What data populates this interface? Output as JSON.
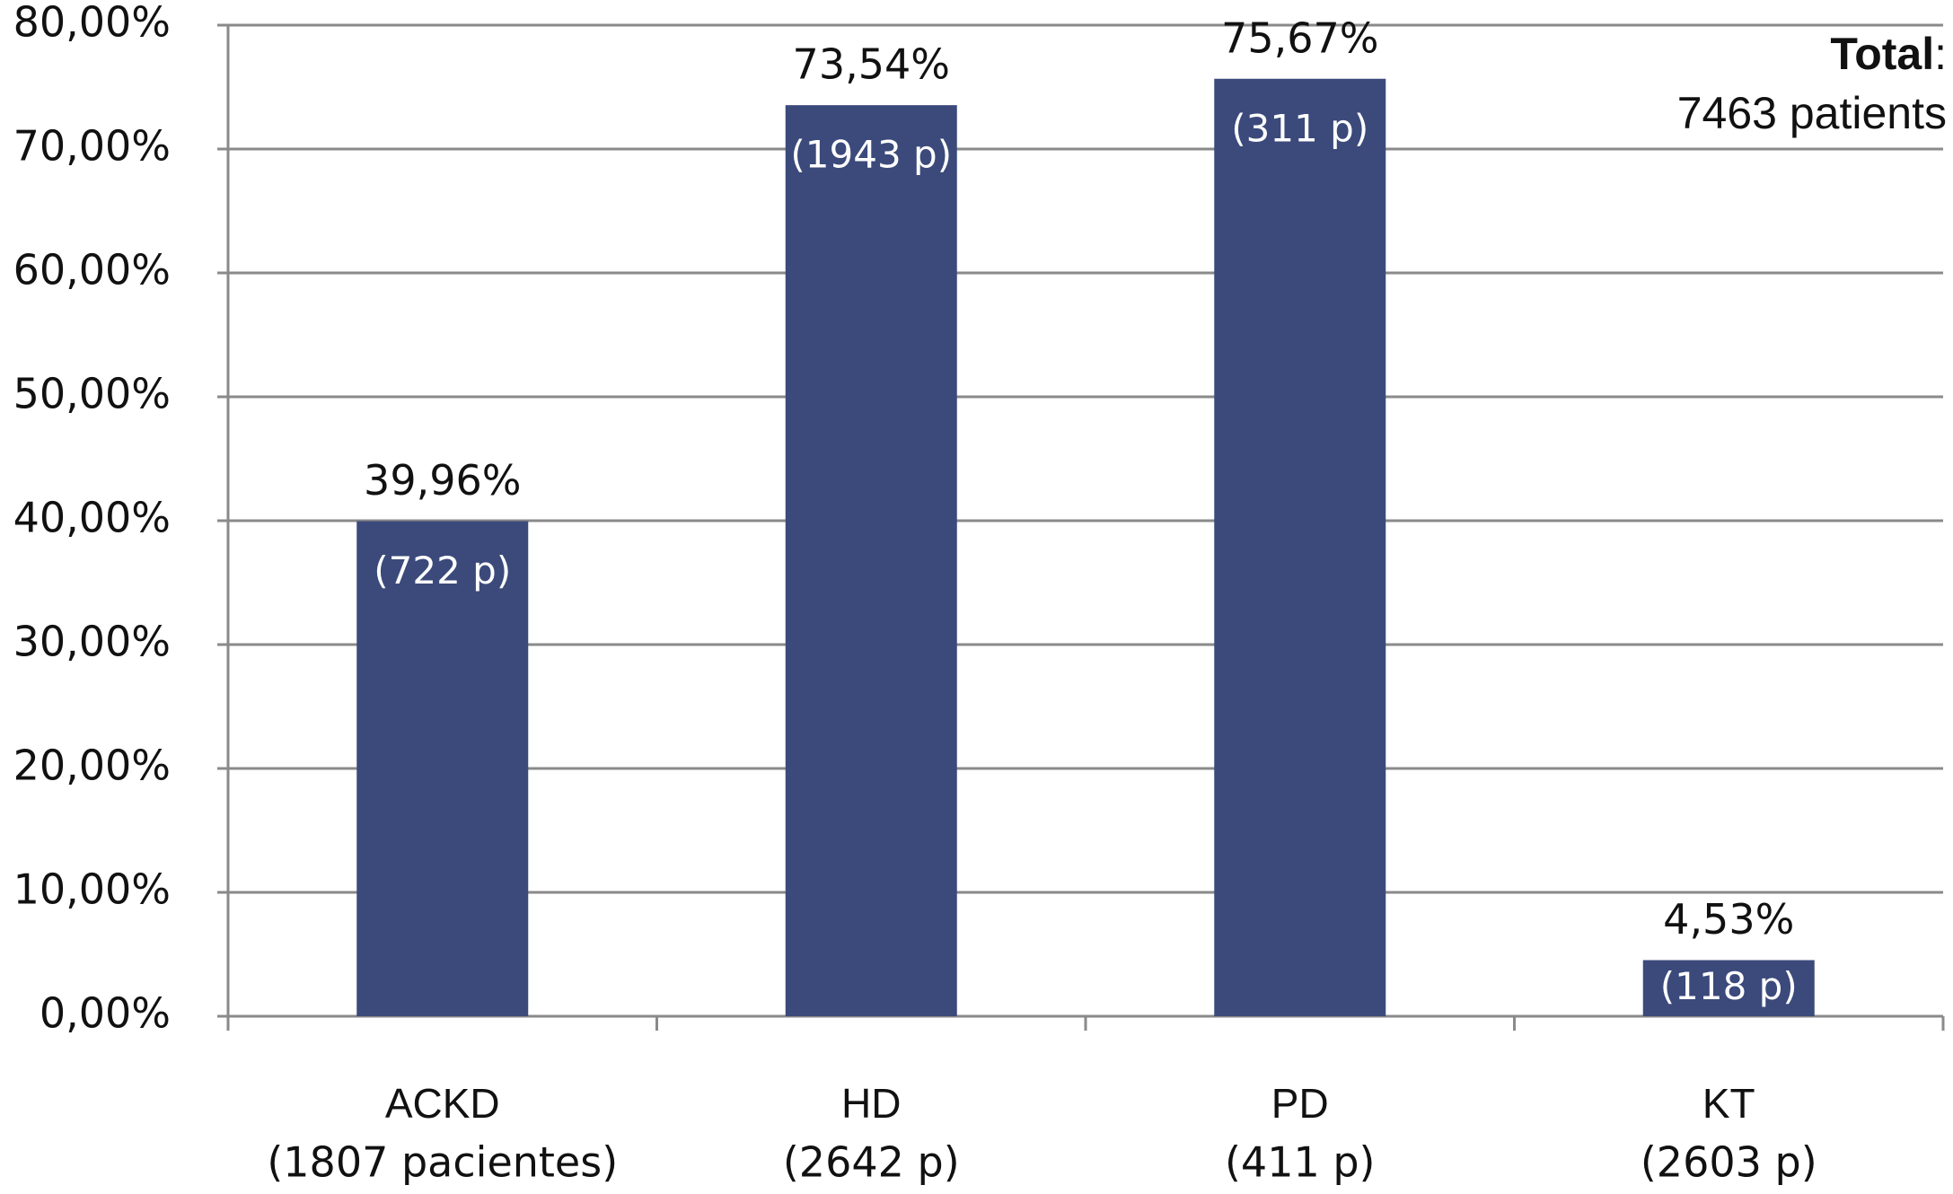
{
  "chart_data": {
    "type": "bar",
    "categories": [
      "ACKD",
      "HD",
      "PD",
      "KT"
    ],
    "category_counts": [
      "(1807 pacientes)",
      "(2642 p)",
      "(411 p)",
      "(2603 p)"
    ],
    "values": [
      39.96,
      73.54,
      75.67,
      4.53
    ],
    "value_labels": [
      "39,96%",
      "73,54%",
      "75,67%",
      "4,53%"
    ],
    "inner_labels": [
      "(722 p)",
      "(1943 p)",
      "(311 p)",
      "(118 p)"
    ],
    "color": "#3b4a7b",
    "ylim": [
      0,
      80
    ],
    "yticks": [
      {
        "value": 0,
        "label": "0,00%"
      },
      {
        "value": 10,
        "label": "10,00%"
      },
      {
        "value": 20,
        "label": "20,00%"
      },
      {
        "value": 30,
        "label": "30,00%"
      },
      {
        "value": 40,
        "label": "40,00%"
      },
      {
        "value": 50,
        "label": "50,00%"
      },
      {
        "value": 60,
        "label": "60,00%"
      },
      {
        "value": 70,
        "label": "70,00%"
      },
      {
        "value": 80,
        "label": "80,00%"
      }
    ],
    "grid": true,
    "annotation": [
      "Total",
      ":",
      "7463 patients"
    ]
  }
}
